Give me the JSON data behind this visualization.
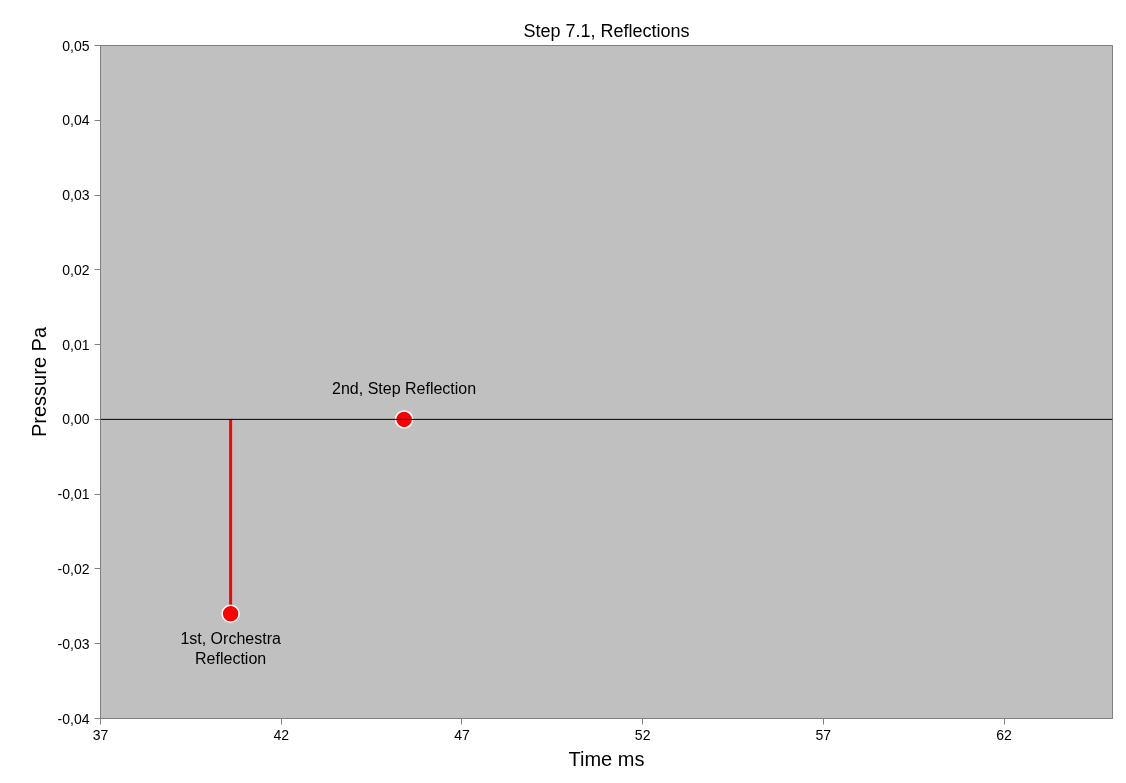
{
  "chart_data": {
    "type": "lollipop",
    "title": "Step 7.1, Reflections",
    "xlabel": "Time ms",
    "ylabel": "Pressure Pa",
    "x": [
      40.6,
      45.4
    ],
    "series": [
      {
        "color": "#ff0000",
        "values": [
          -0.026,
          0.0
        ]
      }
    ],
    "xlim": [
      37,
      65
    ],
    "xticks": [
      37,
      42,
      47,
      52,
      57,
      62
    ],
    "ylim": [
      -0.04,
      0.05
    ],
    "yticks": [
      {
        "value": -0.04,
        "label": "-0,04"
      },
      {
        "value": -0.03,
        "label": "-0,03"
      },
      {
        "value": -0.02,
        "label": "-0,02"
      },
      {
        "value": -0.01,
        "label": "-0,01"
      },
      {
        "value": 0.0,
        "label": "0,00"
      },
      {
        "value": 0.01,
        "label": "0,01"
      },
      {
        "value": 0.02,
        "label": "0,02"
      },
      {
        "value": 0.03,
        "label": "0,03"
      },
      {
        "value": 0.04,
        "label": "0,04"
      },
      {
        "value": 0.05,
        "label": "0,05"
      }
    ],
    "annotations": [
      {
        "text": "1st, Orchestra\nReflection",
        "x": 40.6,
        "y": -0.026
      },
      {
        "text": "2nd, Step Reflection",
        "x": 45.4,
        "y": 0.0
      }
    ],
    "ref_lines": [
      {
        "axis": "y",
        "value": 0.0,
        "color": "#000000"
      }
    ],
    "marker": "circle"
  }
}
